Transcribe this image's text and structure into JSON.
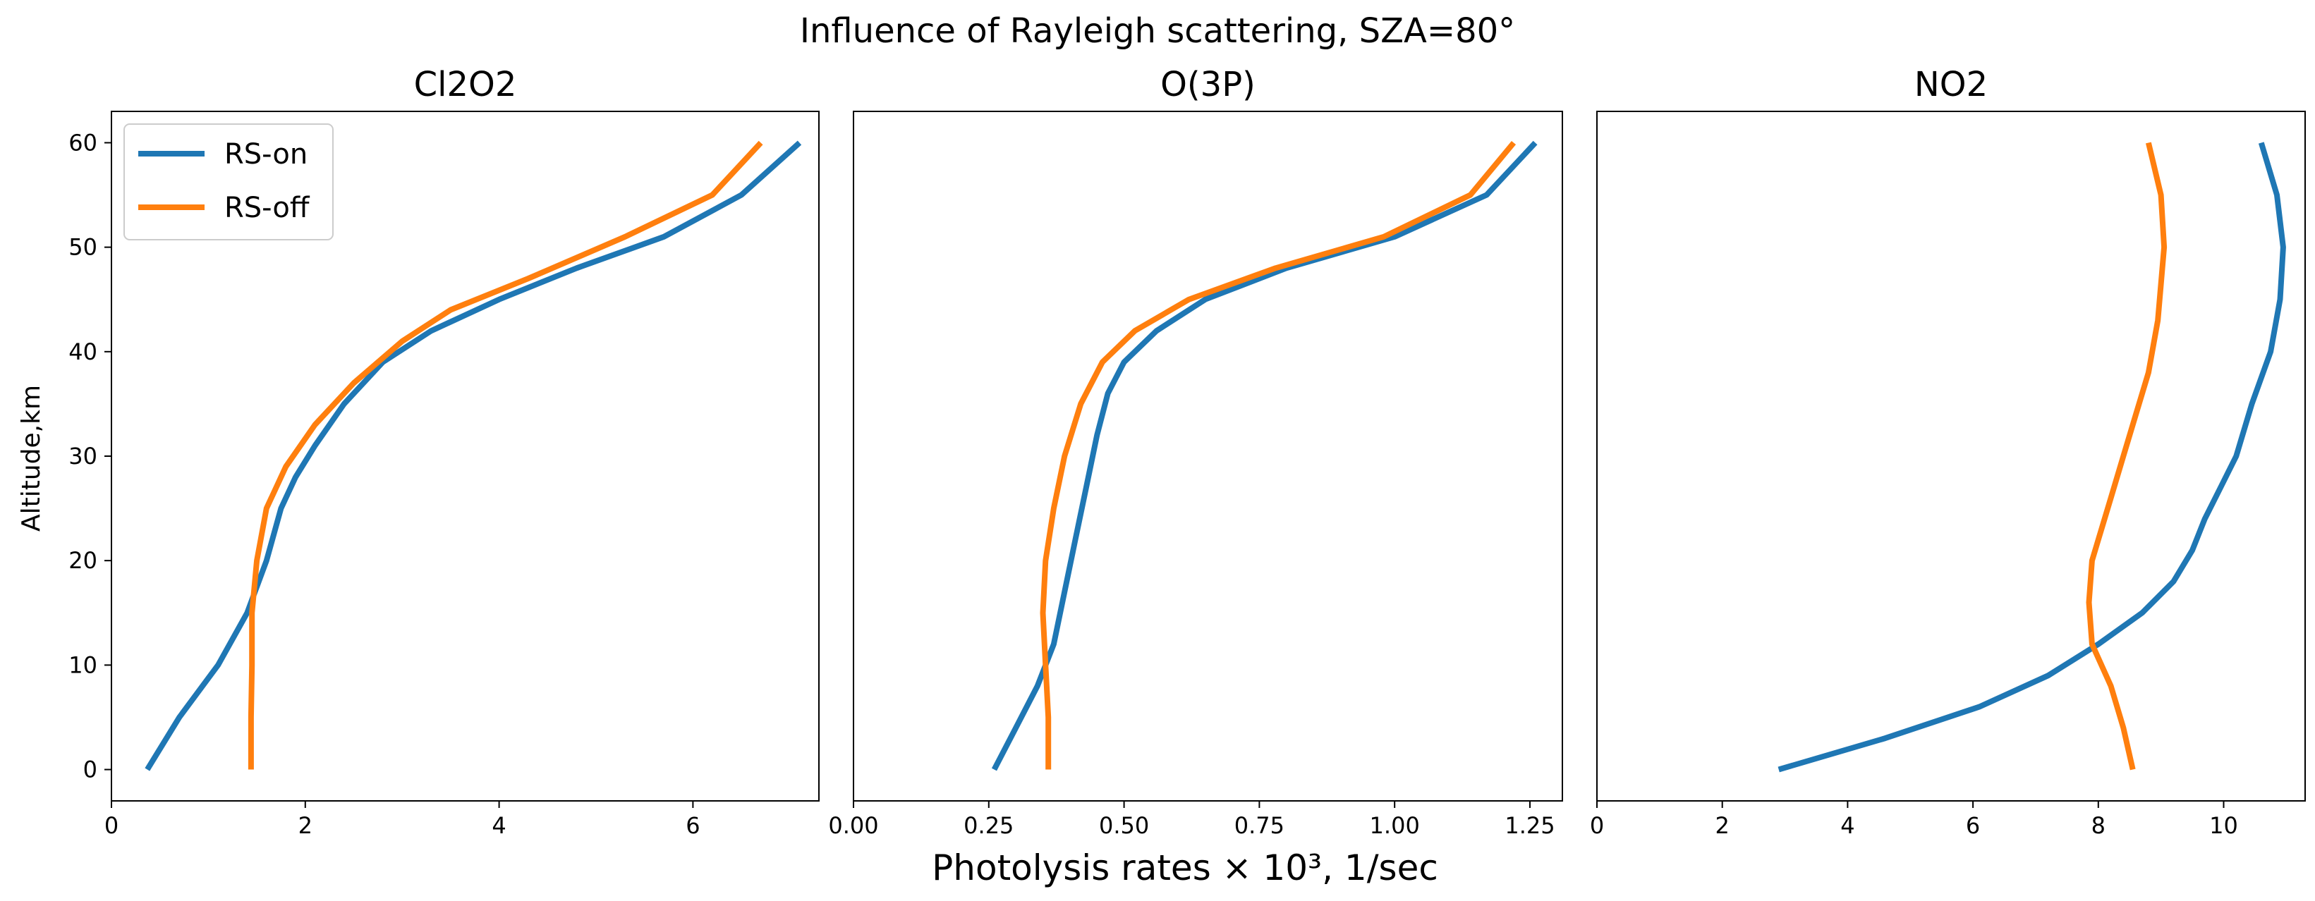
{
  "figure": {
    "title": "Influence of Rayleigh scattering, SZA=80°",
    "xlabel": "Photolysis rates × 10³, 1/sec",
    "ylabel": "Altitude,km",
    "legend": {
      "location": "upper-left",
      "entries": [
        "RS-on",
        "RS-off"
      ]
    },
    "colors": {
      "RS-on": "#1f77b4",
      "RS-off": "#ff7f0e"
    }
  },
  "chart_data": [
    {
      "type": "line",
      "title": "Cl2O2",
      "xlim": [
        0,
        7.3
      ],
      "ylim": [
        -3,
        63
      ],
      "xticks": [
        0,
        2,
        4,
        6
      ],
      "xtick_labels": [
        "0",
        "2",
        "4",
        "6"
      ],
      "yticks": [
        0,
        10,
        20,
        30,
        40,
        50,
        60
      ],
      "ytick_labels": [
        "0",
        "10",
        "20",
        "30",
        "40",
        "50",
        "60"
      ],
      "show_yticks": true,
      "series": [
        {
          "name": "RS-on",
          "color": "#1f77b4",
          "x": [
            0.37,
            0.7,
            1.1,
            1.4,
            1.6,
            1.75,
            1.9,
            2.1,
            2.4,
            2.8,
            3.3,
            4.0,
            4.8,
            5.7,
            6.5,
            7.1
          ],
          "y": [
            0,
            5,
            10,
            15,
            20,
            25,
            28,
            31,
            35,
            39,
            42,
            45,
            48,
            51,
            55,
            60
          ]
        },
        {
          "name": "RS-off",
          "color": "#ff7f0e",
          "x": [
            1.44,
            1.44,
            1.45,
            1.45,
            1.5,
            1.6,
            1.8,
            2.1,
            2.5,
            3.0,
            3.5,
            4.3,
            5.3,
            6.2,
            6.7
          ],
          "y": [
            0,
            5,
            10,
            15,
            20,
            25,
            29,
            33,
            37,
            41,
            44,
            47,
            51,
            55,
            60
          ]
        }
      ]
    },
    {
      "type": "line",
      "title": "O(3P)",
      "xlim": [
        0,
        1.31
      ],
      "ylim": [
        -3,
        63
      ],
      "xticks": [
        0,
        0.25,
        0.5,
        0.75,
        1.0,
        1.25
      ],
      "xtick_labels": [
        "0.00",
        "0.25",
        "0.50",
        "0.75",
        "1.00",
        "1.25"
      ],
      "yticks": [
        0,
        10,
        20,
        30,
        40,
        50,
        60
      ],
      "show_yticks": false,
      "series": [
        {
          "name": "RS-on",
          "color": "#1f77b4",
          "x": [
            0.26,
            0.3,
            0.34,
            0.37,
            0.39,
            0.41,
            0.43,
            0.45,
            0.47,
            0.5,
            0.56,
            0.65,
            0.8,
            1.0,
            1.17,
            1.26
          ],
          "y": [
            0,
            4,
            8,
            12,
            17,
            22,
            27,
            32,
            36,
            39,
            42,
            45,
            48,
            51,
            55,
            60
          ]
        },
        {
          "name": "RS-off",
          "color": "#ff7f0e",
          "x": [
            0.36,
            0.36,
            0.355,
            0.35,
            0.355,
            0.37,
            0.39,
            0.42,
            0.46,
            0.52,
            0.62,
            0.78,
            0.98,
            1.14,
            1.22
          ],
          "y": [
            0,
            5,
            10,
            15,
            20,
            25,
            30,
            35,
            39,
            42,
            45,
            48,
            51,
            55,
            60
          ]
        }
      ]
    },
    {
      "type": "line",
      "title": "NO2",
      "xlim": [
        0,
        11.3
      ],
      "ylim": [
        -3,
        63
      ],
      "xticks": [
        0,
        2,
        4,
        6,
        8,
        10
      ],
      "xtick_labels": [
        "0",
        "2",
        "4",
        "6",
        "8",
        "10"
      ],
      "yticks": [
        0,
        10,
        20,
        30,
        40,
        50,
        60
      ],
      "show_yticks": false,
      "series": [
        {
          "name": "RS-on",
          "color": "#1f77b4",
          "x": [
            2.9,
            4.6,
            6.1,
            7.2,
            8.0,
            8.7,
            9.2,
            9.5,
            9.7,
            9.95,
            10.2,
            10.45,
            10.75,
            10.9,
            10.95,
            10.85,
            10.6
          ],
          "y": [
            0,
            3,
            6,
            9,
            12,
            15,
            18,
            21,
            24,
            27,
            30,
            35,
            40,
            45,
            50,
            55,
            60
          ]
        },
        {
          "name": "RS-off",
          "color": "#ff7f0e",
          "x": [
            8.55,
            8.4,
            8.2,
            7.9,
            7.85,
            7.9,
            8.0,
            8.2,
            8.4,
            8.6,
            8.8,
            8.95,
            9.05,
            9.0,
            8.8
          ],
          "y": [
            0,
            4,
            8,
            12,
            16,
            20,
            22,
            26,
            30,
            34,
            38,
            43,
            50,
            55,
            60
          ]
        }
      ]
    }
  ]
}
